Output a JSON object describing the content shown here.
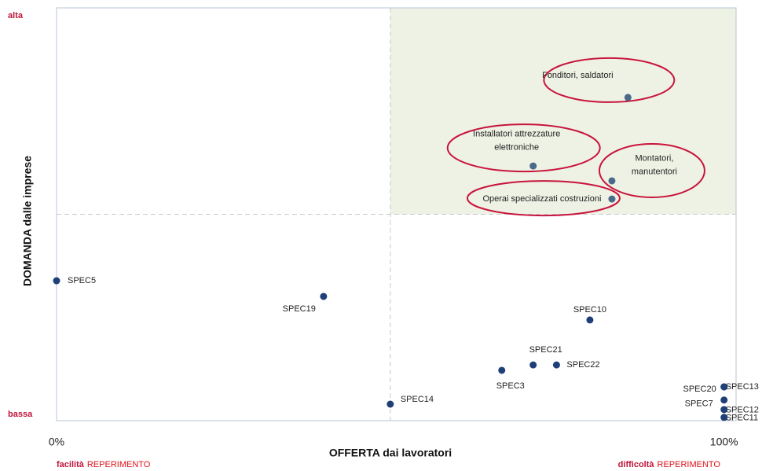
{
  "chart_data": {
    "type": "scatter",
    "x_label": "OFFERTA dai lavoratori",
    "y_label": "DOMANDA dalle imprese",
    "xlim": [
      0,
      101.8
    ],
    "ylim": [
      0,
      100
    ],
    "xticks": [
      {
        "value": 0,
        "label": "0%"
      },
      {
        "value": 100,
        "label": "100%"
      }
    ],
    "yticks": [
      {
        "value": 100,
        "label": "alta"
      },
      {
        "value": 0,
        "label": "bassa"
      }
    ],
    "x_median": 50,
    "y_median": 50,
    "highlight_color": "#eef2e4",
    "notes": [
      {
        "bold": "facilità",
        "text": "REPERIMENTO"
      },
      {
        "bold": "difficoltà",
        "text": "REPERIMENTO"
      }
    ],
    "series": [
      {
        "color": "#1f3f77",
        "labels": [
          "SPEC5",
          "SPEC19",
          "SPEC14",
          "SPEC3",
          "SPEC21",
          "SPEC22",
          "SPEC10",
          "SPEC20",
          "SPEC13",
          "SPEC7",
          "SPEC12",
          "SPEC11"
        ],
        "x": [
          0,
          40,
          50,
          66.7,
          71.4,
          74.9,
          79.9,
          100,
          100,
          100,
          100,
          100
        ],
        "values": [
          33.9,
          30.1,
          4,
          12.2,
          13.5,
          13.5,
          24.4,
          8.2,
          8.2,
          5,
          2.7,
          0.8
        ]
      },
      {
        "color": "#4a6a8a",
        "ellipse_color": "#c8143c",
        "labels": [
          [
            "Fonditori, saldatori"
          ],
          [
            "Installatori attrezzature",
            "elettroniche"
          ],
          [
            "Montatori,",
            "manutentori"
          ],
          [
            "Operai specializzati costruzioni"
          ]
        ],
        "x": [
          85.6,
          71.4,
          83.2,
          83.2
        ],
        "values": [
          78.3,
          61.7,
          58.1,
          53.7
        ]
      }
    ]
  }
}
